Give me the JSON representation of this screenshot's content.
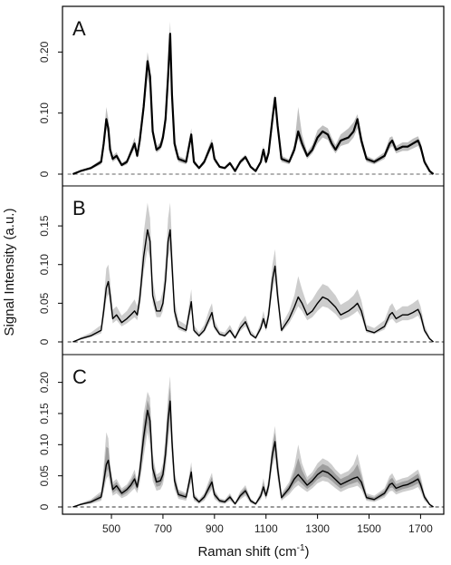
{
  "chart_data": [
    {
      "type": "line",
      "panel_label": "A",
      "ylim": [
        0,
        0.26
      ],
      "yticks": [
        0,
        0.1,
        0.2
      ],
      "ytick_labels": [
        "0",
        "0.10",
        "0.20"
      ],
      "x": [
        350,
        380,
        420,
        460,
        470,
        480,
        488,
        495,
        505,
        520,
        540,
        560,
        575,
        590,
        600,
        610,
        625,
        640,
        650,
        660,
        675,
        690,
        700,
        710,
        720,
        728,
        735,
        745,
        760,
        790,
        810,
        820,
        840,
        860,
        880,
        890,
        900,
        920,
        940,
        960,
        980,
        1000,
        1020,
        1040,
        1060,
        1080,
        1090,
        1100,
        1110,
        1125,
        1135,
        1145,
        1160,
        1190,
        1210,
        1225,
        1240,
        1260,
        1280,
        1300,
        1320,
        1340,
        1355,
        1370,
        1390,
        1420,
        1440,
        1455,
        1470,
        1490,
        1520,
        1560,
        1580,
        1590,
        1605,
        1630,
        1650,
        1670,
        1690,
        1700,
        1715,
        1735,
        1750
      ],
      "series": [
        {
          "values": [
            0,
            0.005,
            0.01,
            0.02,
            0.05,
            0.09,
            0.075,
            0.04,
            0.025,
            0.03,
            0.015,
            0.02,
            0.035,
            0.05,
            0.03,
            0.055,
            0.11,
            0.185,
            0.16,
            0.07,
            0.04,
            0.045,
            0.06,
            0.09,
            0.16,
            0.23,
            0.13,
            0.05,
            0.025,
            0.02,
            0.065,
            0.02,
            0.01,
            0.02,
            0.04,
            0.05,
            0.025,
            0.012,
            0.01,
            0.018,
            0.005,
            0.02,
            0.028,
            0.012,
            0.005,
            0.02,
            0.04,
            0.02,
            0.035,
            0.09,
            0.125,
            0.08,
            0.025,
            0.02,
            0.04,
            0.07,
            0.05,
            0.03,
            0.04,
            0.06,
            0.07,
            0.065,
            0.05,
            0.04,
            0.055,
            0.06,
            0.07,
            0.09,
            0.055,
            0.025,
            0.02,
            0.03,
            0.05,
            0.055,
            0.04,
            0.045,
            0.045,
            0.05,
            0.055,
            0.045,
            0.02,
            0.005,
            0
          ]
        },
        {
          "values": [
            0,
            0.004,
            0.008,
            0.016,
            0.04,
            0.075,
            0.065,
            0.035,
            0.02,
            0.025,
            0.012,
            0.016,
            0.03,
            0.042,
            0.026,
            0.045,
            0.095,
            0.16,
            0.14,
            0.06,
            0.035,
            0.04,
            0.05,
            0.075,
            0.14,
            0.2,
            0.11,
            0.04,
            0.02,
            0.016,
            0.055,
            0.016,
            0.008,
            0.016,
            0.034,
            0.043,
            0.02,
            0.01,
            0.008,
            0.015,
            0.004,
            0.016,
            0.024,
            0.01,
            0.004,
            0.016,
            0.034,
            0.016,
            0.03,
            0.075,
            0.11,
            0.07,
            0.02,
            0.016,
            0.034,
            0.058,
            0.042,
            0.025,
            0.034,
            0.05,
            0.06,
            0.056,
            0.043,
            0.034,
            0.046,
            0.05,
            0.06,
            0.075,
            0.046,
            0.02,
            0.016,
            0.025,
            0.042,
            0.046,
            0.034,
            0.038,
            0.038,
            0.042,
            0.046,
            0.038,
            0.016,
            0.004,
            0
          ]
        },
        {
          "values": [
            0,
            0.006,
            0.012,
            0.024,
            0.06,
            0.11,
            0.09,
            0.048,
            0.03,
            0.036,
            0.018,
            0.024,
            0.042,
            0.06,
            0.036,
            0.065,
            0.125,
            0.2,
            0.175,
            0.08,
            0.046,
            0.052,
            0.07,
            0.105,
            0.18,
            0.25,
            0.15,
            0.06,
            0.03,
            0.024,
            0.075,
            0.024,
            0.012,
            0.024,
            0.048,
            0.058,
            0.03,
            0.014,
            0.012,
            0.021,
            0.006,
            0.024,
            0.032,
            0.014,
            0.006,
            0.024,
            0.046,
            0.024,
            0.04,
            0.1,
            0.13,
            0.09,
            0.03,
            0.024,
            0.048,
            0.11,
            0.065,
            0.036,
            0.048,
            0.072,
            0.08,
            0.075,
            0.06,
            0.048,
            0.065,
            0.075,
            0.085,
            0.098,
            0.065,
            0.03,
            0.024,
            0.036,
            0.06,
            0.062,
            0.046,
            0.052,
            0.052,
            0.058,
            0.062,
            0.052,
            0.024,
            0.006,
            0
          ]
        }
      ]
    },
    {
      "type": "line",
      "panel_label": "B",
      "ylim": [
        0,
        0.19
      ],
      "yticks": [
        0,
        0.05,
        0.1,
        0.15
      ],
      "ytick_labels": [
        "0",
        "0.05",
        "0.10",
        "0.15"
      ],
      "x": [
        350,
        380,
        420,
        460,
        470,
        480,
        488,
        495,
        505,
        520,
        540,
        560,
        575,
        590,
        600,
        610,
        625,
        640,
        650,
        660,
        675,
        690,
        700,
        710,
        720,
        728,
        735,
        745,
        760,
        790,
        810,
        820,
        840,
        860,
        880,
        890,
        900,
        920,
        940,
        960,
        980,
        1000,
        1020,
        1040,
        1060,
        1080,
        1090,
        1100,
        1110,
        1125,
        1135,
        1145,
        1160,
        1190,
        1210,
        1225,
        1240,
        1260,
        1280,
        1300,
        1320,
        1340,
        1355,
        1370,
        1390,
        1420,
        1440,
        1455,
        1470,
        1490,
        1520,
        1560,
        1580,
        1590,
        1605,
        1630,
        1650,
        1670,
        1690,
        1700,
        1715,
        1735,
        1750
      ],
      "series": [
        {
          "values": [
            0,
            0.004,
            0.008,
            0.015,
            0.04,
            0.07,
            0.078,
            0.06,
            0.03,
            0.035,
            0.025,
            0.03,
            0.035,
            0.04,
            0.035,
            0.055,
            0.11,
            0.145,
            0.13,
            0.06,
            0.04,
            0.04,
            0.05,
            0.08,
            0.13,
            0.145,
            0.1,
            0.04,
            0.02,
            0.015,
            0.052,
            0.015,
            0.008,
            0.015,
            0.03,
            0.038,
            0.02,
            0.01,
            0.008,
            0.015,
            0.005,
            0.018,
            0.026,
            0.01,
            0.005,
            0.018,
            0.03,
            0.018,
            0.035,
            0.08,
            0.098,
            0.06,
            0.015,
            0.03,
            0.045,
            0.058,
            0.05,
            0.035,
            0.04,
            0.05,
            0.058,
            0.055,
            0.05,
            0.045,
            0.035,
            0.04,
            0.045,
            0.05,
            0.04,
            0.015,
            0.012,
            0.02,
            0.035,
            0.038,
            0.03,
            0.035,
            0.035,
            0.038,
            0.042,
            0.035,
            0.015,
            0.004,
            0
          ]
        },
        {
          "values": [
            0,
            0.006,
            0.012,
            0.022,
            0.055,
            0.095,
            0.1,
            0.08,
            0.042,
            0.046,
            0.034,
            0.04,
            0.048,
            0.055,
            0.046,
            0.072,
            0.14,
            0.18,
            0.16,
            0.08,
            0.052,
            0.054,
            0.066,
            0.105,
            0.16,
            0.18,
            0.13,
            0.055,
            0.028,
            0.022,
            0.068,
            0.022,
            0.012,
            0.022,
            0.042,
            0.05,
            0.028,
            0.014,
            0.012,
            0.022,
            0.008,
            0.025,
            0.034,
            0.015,
            0.008,
            0.025,
            0.04,
            0.025,
            0.046,
            0.1,
            0.12,
            0.078,
            0.022,
            0.04,
            0.06,
            0.085,
            0.068,
            0.048,
            0.055,
            0.066,
            0.075,
            0.072,
            0.066,
            0.06,
            0.048,
            0.054,
            0.06,
            0.068,
            0.054,
            0.022,
            0.018,
            0.028,
            0.046,
            0.05,
            0.04,
            0.046,
            0.046,
            0.05,
            0.055,
            0.046,
            0.022,
            0.006,
            0
          ]
        },
        {
          "values": [
            0,
            0.003,
            0.006,
            0.011,
            0.03,
            0.055,
            0.062,
            0.048,
            0.024,
            0.028,
            0.02,
            0.024,
            0.028,
            0.032,
            0.028,
            0.045,
            0.09,
            0.12,
            0.108,
            0.05,
            0.032,
            0.032,
            0.04,
            0.065,
            0.108,
            0.12,
            0.082,
            0.032,
            0.016,
            0.012,
            0.042,
            0.012,
            0.006,
            0.012,
            0.024,
            0.03,
            0.016,
            0.008,
            0.006,
            0.012,
            0.004,
            0.014,
            0.02,
            0.008,
            0.004,
            0.014,
            0.024,
            0.014,
            0.028,
            0.065,
            0.08,
            0.05,
            0.012,
            0.024,
            0.036,
            0.046,
            0.04,
            0.028,
            0.032,
            0.04,
            0.046,
            0.044,
            0.04,
            0.036,
            0.028,
            0.032,
            0.036,
            0.04,
            0.032,
            0.012,
            0.01,
            0.016,
            0.028,
            0.03,
            0.024,
            0.028,
            0.028,
            0.03,
            0.034,
            0.028,
            0.012,
            0.003,
            0
          ]
        }
      ]
    },
    {
      "type": "line",
      "panel_label": "C",
      "ylim": [
        0,
        0.23
      ],
      "yticks": [
        0,
        0.05,
        0.1,
        0.15,
        0.2
      ],
      "ytick_labels": [
        "0",
        "0.05",
        "0.10",
        "0.15",
        "0.20"
      ],
      "x": [
        350,
        380,
        420,
        460,
        470,
        480,
        488,
        495,
        505,
        520,
        540,
        560,
        575,
        590,
        600,
        610,
        625,
        640,
        650,
        660,
        675,
        690,
        700,
        710,
        720,
        728,
        735,
        745,
        760,
        790,
        810,
        820,
        840,
        860,
        880,
        890,
        900,
        920,
        940,
        960,
        980,
        1000,
        1020,
        1040,
        1060,
        1080,
        1090,
        1100,
        1110,
        1125,
        1135,
        1145,
        1160,
        1190,
        1210,
        1225,
        1240,
        1260,
        1280,
        1300,
        1320,
        1340,
        1355,
        1370,
        1390,
        1420,
        1440,
        1455,
        1470,
        1490,
        1520,
        1560,
        1580,
        1590,
        1605,
        1630,
        1650,
        1670,
        1690,
        1700,
        1715,
        1735,
        1750
      ],
      "series": [
        {
          "values": [
            0,
            0.004,
            0.008,
            0.016,
            0.04,
            0.068,
            0.075,
            0.055,
            0.028,
            0.034,
            0.022,
            0.028,
            0.035,
            0.045,
            0.032,
            0.056,
            0.112,
            0.155,
            0.138,
            0.062,
            0.04,
            0.042,
            0.052,
            0.085,
            0.14,
            0.17,
            0.105,
            0.042,
            0.02,
            0.016,
            0.056,
            0.016,
            0.008,
            0.016,
            0.032,
            0.04,
            0.02,
            0.01,
            0.008,
            0.016,
            0.005,
            0.018,
            0.026,
            0.01,
            0.005,
            0.018,
            0.032,
            0.018,
            0.034,
            0.085,
            0.105,
            0.062,
            0.015,
            0.03,
            0.045,
            0.052,
            0.045,
            0.035,
            0.042,
            0.052,
            0.058,
            0.055,
            0.05,
            0.044,
            0.036,
            0.042,
            0.046,
            0.048,
            0.04,
            0.015,
            0.012,
            0.022,
            0.036,
            0.038,
            0.03,
            0.034,
            0.036,
            0.04,
            0.045,
            0.036,
            0.016,
            0.004,
            0
          ]
        },
        {
          "values": [
            0,
            0.006,
            0.012,
            0.025,
            0.065,
            0.12,
            0.11,
            0.07,
            0.04,
            0.045,
            0.03,
            0.036,
            0.046,
            0.06,
            0.042,
            0.075,
            0.15,
            0.185,
            0.175,
            0.085,
            0.052,
            0.056,
            0.07,
            0.115,
            0.18,
            0.21,
            0.14,
            0.058,
            0.028,
            0.022,
            0.072,
            0.022,
            0.012,
            0.022,
            0.044,
            0.055,
            0.028,
            0.014,
            0.012,
            0.022,
            0.007,
            0.025,
            0.035,
            0.014,
            0.007,
            0.025,
            0.046,
            0.025,
            0.046,
            0.105,
            0.13,
            0.085,
            0.022,
            0.04,
            0.065,
            0.1,
            0.07,
            0.048,
            0.056,
            0.07,
            0.078,
            0.074,
            0.068,
            0.06,
            0.052,
            0.058,
            0.068,
            0.085,
            0.058,
            0.022,
            0.018,
            0.03,
            0.05,
            0.054,
            0.042,
            0.046,
            0.048,
            0.054,
            0.06,
            0.05,
            0.022,
            0.006,
            0
          ]
        },
        {
          "values": [
            0,
            0.003,
            0.005,
            0.01,
            0.025,
            0.045,
            0.05,
            0.035,
            0.018,
            0.022,
            0.014,
            0.018,
            0.024,
            0.03,
            0.022,
            0.038,
            0.08,
            0.12,
            0.1,
            0.042,
            0.026,
            0.028,
            0.036,
            0.06,
            0.1,
            0.13,
            0.075,
            0.028,
            0.013,
            0.01,
            0.04,
            0.01,
            0.005,
            0.01,
            0.022,
            0.028,
            0.013,
            0.006,
            0.005,
            0.01,
            0.003,
            0.012,
            0.018,
            0.006,
            0.003,
            0.012,
            0.022,
            0.012,
            0.024,
            0.065,
            0.08,
            0.045,
            0.01,
            0.02,
            0.03,
            0.035,
            0.03,
            0.024,
            0.03,
            0.038,
            0.042,
            0.04,
            0.035,
            0.03,
            0.024,
            0.03,
            0.032,
            0.034,
            0.028,
            0.01,
            0.008,
            0.015,
            0.025,
            0.026,
            0.02,
            0.024,
            0.026,
            0.028,
            0.032,
            0.025,
            0.01,
            0.003,
            0
          ]
        }
      ]
    }
  ],
  "axes": {
    "xlim": [
      310,
      1790
    ],
    "xticks": [
      500,
      700,
      900,
      1100,
      1300,
      1500,
      1700
    ],
    "xtick_labels": [
      "500",
      "700",
      "900",
      "1100",
      "1300",
      "1500",
      "1700"
    ],
    "xlabel": "Raman shift (cm",
    "xlabel_sup": "-1",
    "xlabel_tail": ")",
    "ylabel": "Signal Intensity (a.u.)"
  },
  "colors": {
    "mean_line": "#000000",
    "band_light": "#c8c8c8",
    "band_dark": "#8a8a8a",
    "frame": "#000000",
    "baseline": "#333333"
  }
}
